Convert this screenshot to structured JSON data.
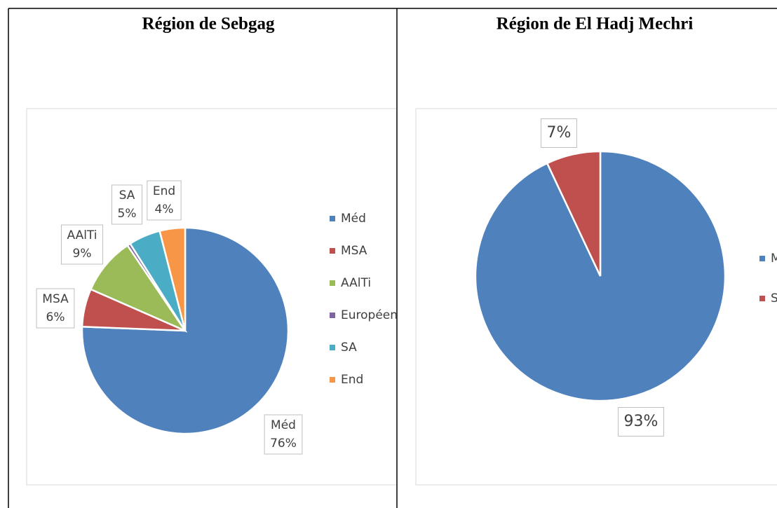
{
  "chart_data": [
    {
      "type": "pie",
      "title": "Région de Sebgag",
      "categories": [
        "Méd",
        "MSA",
        "AAlTi",
        "Européen",
        "SA",
        "End"
      ],
      "values": [
        76,
        6,
        9,
        0.5,
        5,
        4
      ],
      "value_labels": [
        "76%",
        "6%",
        "9%",
        null,
        "5%",
        "4%"
      ],
      "colors": [
        "#4f81bd",
        "#c0504d",
        "#9bbb59",
        "#8064a2",
        "#4bacc6",
        "#f79646"
      ],
      "label_shows_category": true
    },
    {
      "type": "pie",
      "title": "Région de El Hadj Mechri",
      "categories": [
        "Méd",
        "SA"
      ],
      "values": [
        93,
        7
      ],
      "value_labels": [
        "93%",
        "7%"
      ],
      "colors": [
        "#4f81bd",
        "#c0504d"
      ],
      "label_shows_category": false
    }
  ]
}
